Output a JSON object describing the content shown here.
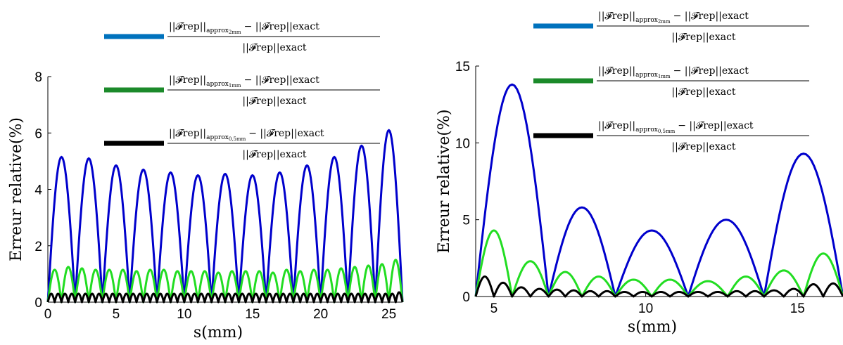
{
  "chart_data": [
    {
      "type": "line",
      "xlabel": "s(mm)",
      "ylabel": "Erreur relative(%)",
      "xlim": [
        0,
        26
      ],
      "ylim": [
        0,
        8
      ],
      "xticks": [
        0,
        5,
        10,
        15,
        20,
        25
      ],
      "yticks": [
        0,
        2,
        4,
        6,
        8
      ],
      "legend": {
        "placement": "top",
        "entries": [
          {
            "color": "#0072BD",
            "numerator_main": "||𝓕rep||",
            "numerator_sub": "approx",
            "numerator_subsub": "2mm",
            "numerator_tail": "− ||𝓕rep||exact",
            "denominator": "||𝓕rep||exact"
          },
          {
            "color": "#1B8A2A",
            "numerator_main": "||𝓕rep||",
            "numerator_sub": "approx",
            "numerator_subsub": "1mm",
            "numerator_tail": "− ||𝓕rep||exact",
            "denominator": "||𝓕rep||exact"
          },
          {
            "color": "#000000",
            "numerator_main": "||𝓕rep||",
            "numerator_sub": "approx",
            "numerator_subsub": "0,5mm",
            "numerator_tail": "− ||𝓕rep||exact",
            "denominator": "||𝓕rep||exact"
          }
        ]
      },
      "series": [
        {
          "color": "#0000CC",
          "period": 2,
          "amplitudes": [
            5.15,
            5.1,
            4.85,
            4.7,
            4.6,
            4.5,
            4.55,
            4.5,
            4.6,
            4.85,
            5.15,
            5.55,
            6.1
          ]
        },
        {
          "color": "#22DD22",
          "period": 1,
          "amplitudes": [
            1.15,
            1.25,
            1.2,
            1.15,
            1.15,
            1.15,
            1.1,
            1.15,
            1.15,
            1.1,
            1.1,
            1.1,
            1.05,
            1.1,
            1.1,
            1.1,
            1.05,
            1.15,
            1.1,
            1.15,
            1.15,
            1.2,
            1.25,
            1.3,
            1.35,
            1.5
          ]
        },
        {
          "color": "#000000",
          "period": 0.5,
          "amplitudes": [
            0.3,
            0.3,
            0.3,
            0.3,
            0.3,
            0.3,
            0.3,
            0.3,
            0.3,
            0.3,
            0.3,
            0.3,
            0.3,
            0.3,
            0.3,
            0.3,
            0.3,
            0.3,
            0.3,
            0.3,
            0.3,
            0.3,
            0.3,
            0.3,
            0.3,
            0.3,
            0.3,
            0.3,
            0.3,
            0.3,
            0.3,
            0.3,
            0.3,
            0.3,
            0.3,
            0.3,
            0.3,
            0.3,
            0.3,
            0.3,
            0.3,
            0.3,
            0.3,
            0.3,
            0.3,
            0.3,
            0.3,
            0.3,
            0.3,
            0.3,
            0.3,
            0.35
          ]
        }
      ]
    },
    {
      "type": "line",
      "xlabel": "s(mm)",
      "ylabel": "Erreur relative(%)",
      "xlim": [
        4.4,
        16.5
      ],
      "ylim": [
        0,
        15
      ],
      "xticks": [
        5,
        10,
        15
      ],
      "yticks": [
        0,
        5,
        10,
        15
      ],
      "legend": {
        "placement": "top",
        "entries": [
          {
            "color": "#0072BD",
            "numerator_main": "||𝓕rep||",
            "numerator_sub": "approx",
            "numerator_subsub": "2mm",
            "numerator_tail": "− ||𝓕rep||exact",
            "denominator": "||𝓕rep||exact"
          },
          {
            "color": "#1B8A2A",
            "numerator_main": "||𝓕rep||",
            "numerator_sub": "approx",
            "numerator_subsub": "1mm",
            "numerator_tail": "− ||𝓕rep||exact",
            "denominator": "||𝓕rep||exact"
          },
          {
            "color": "#000000",
            "numerator_main": "||𝓕rep||",
            "numerator_sub": "approx",
            "numerator_subsub": "0,5mm",
            "numerator_tail": "− ||𝓕rep||exact",
            "denominator": "||𝓕rep||exact"
          }
        ]
      },
      "series": [
        {
          "color": "#0000CC",
          "zeros": [
            4.4,
            6.8,
            9.0,
            11.4,
            13.9,
            16.5
          ],
          "amplitudes": [
            13.8,
            5.8,
            4.3,
            5.0,
            9.3
          ]
        },
        {
          "color": "#22DD22",
          "zeros": [
            4.4,
            5.6,
            6.8,
            7.9,
            9.0,
            10.2,
            11.4,
            12.7,
            13.9,
            15.2,
            16.5
          ],
          "amplitudes": [
            4.3,
            2.3,
            1.6,
            1.3,
            1.1,
            1.1,
            1.0,
            1.3,
            1.7,
            2.8
          ]
        },
        {
          "color": "#000000",
          "zeros": [
            4.4,
            5.0,
            5.6,
            6.2,
            6.8,
            7.35,
            7.9,
            8.45,
            9.0,
            9.6,
            10.2,
            10.8,
            11.4,
            12.05,
            12.7,
            13.3,
            13.9,
            14.55,
            15.2,
            15.85,
            16.5
          ],
          "amplitudes": [
            1.3,
            0.9,
            0.6,
            0.5,
            0.45,
            0.4,
            0.35,
            0.35,
            0.3,
            0.3,
            0.3,
            0.3,
            0.3,
            0.3,
            0.35,
            0.35,
            0.4,
            0.5,
            0.8,
            0.85
          ]
        }
      ]
    }
  ]
}
